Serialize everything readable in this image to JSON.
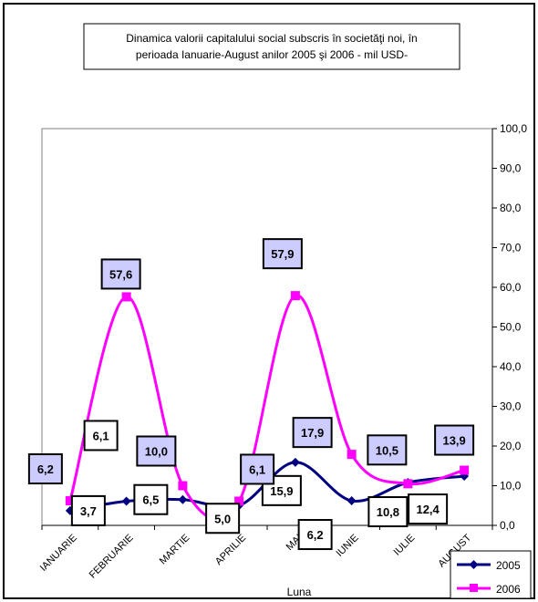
{
  "chart_data": {
    "type": "line",
    "title_lines": [
      "Dinamica  valorii capitalului social subscris în societăţi noi,  în",
      "perioada Ianuarie-August anilor 2005 şi 2006  - mil  USD-"
    ],
    "xlabel": "Luna",
    "ylabel": "",
    "categories": [
      "IANUARIE",
      "FEBRUARIE",
      "MARTIE",
      "APRILIE",
      "MAI",
      "IUNIE",
      "IULIE",
      "AUGUST"
    ],
    "ylim": [
      0,
      100
    ],
    "y_ticks": [
      "0,0",
      "10,0",
      "20,0",
      "30,0",
      "40,0",
      "50,0",
      "60,0",
      "70,0",
      "80,0",
      "90,0",
      "100,0"
    ],
    "y_axis_side": "right",
    "grid": false,
    "legend_position": "bottom-right",
    "series": [
      {
        "name": "2005",
        "color": "#000080",
        "marker": "diamond",
        "values": [
          3.7,
          6.1,
          6.5,
          5.0,
          15.9,
          6.2,
          10.8,
          12.4
        ],
        "labels": [
          "3,7",
          "6,1",
          "6,5",
          "5,0",
          "15,9",
          "6,2",
          "10,8",
          "12,4"
        ],
        "label_fill": "#ffffff"
      },
      {
        "name": "2006",
        "color": "#ff00ff",
        "marker": "square",
        "values": [
          6.2,
          57.6,
          10.0,
          6.1,
          57.9,
          17.9,
          10.5,
          13.9
        ],
        "labels": [
          "6,2",
          "57,6",
          "10,0",
          "6,1",
          "57,9",
          "17,9",
          "10,5",
          "13,9"
        ],
        "label_fill": "#ccccff"
      }
    ]
  }
}
